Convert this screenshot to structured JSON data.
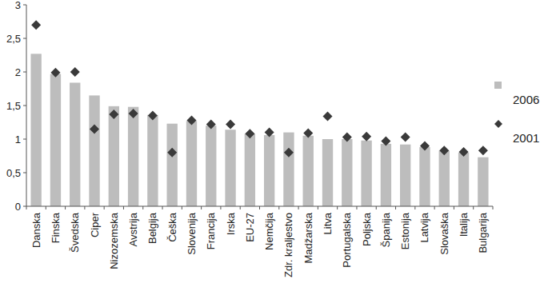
{
  "chart_data": {
    "type": "bar",
    "categories": [
      "Danska",
      "Finska",
      "Švedska",
      "Ciper",
      "Nizozemska",
      "Avstrija",
      "Belgija",
      "Češka",
      "Slovenija",
      "Francija",
      "Irska",
      "EU-27",
      "Nemčija",
      "Zdr. kraljestvo",
      "Madžarska",
      "Litva",
      "Portugalska",
      "Poljska",
      "Španija",
      "Estonija",
      "Latvija",
      "Slovaška",
      "Italija",
      "Bulgarija"
    ],
    "series": [
      {
        "name": "2006",
        "type": "bar",
        "color": "#bdbdbd",
        "values": [
          2.27,
          1.97,
          1.84,
          1.65,
          1.49,
          1.48,
          1.36,
          1.23,
          1.27,
          1.2,
          1.14,
          1.08,
          1.06,
          1.1,
          1.05,
          1.0,
          1.0,
          0.98,
          0.93,
          0.92,
          0.88,
          0.83,
          0.8,
          0.73
        ]
      },
      {
        "name": "2001",
        "type": "scatter",
        "marker": "diamond",
        "color": "#3a3a3a",
        "values": [
          2.7,
          1.99,
          2.0,
          1.15,
          1.37,
          1.38,
          1.35,
          0.8,
          1.28,
          1.22,
          1.22,
          1.08,
          1.1,
          0.8,
          1.09,
          1.34,
          1.03,
          1.04,
          0.97,
          1.03,
          0.9,
          0.83,
          0.81,
          0.83
        ]
      }
    ],
    "ylim": [
      0,
      3
    ],
    "yticks": [
      0,
      {
        "value": 0.5,
        "label": "0,5"
      },
      1,
      {
        "value": 1.5,
        "label": "1,5"
      },
      2,
      {
        "value": 2.5,
        "label": "2,5"
      },
      3
    ],
    "grid": false,
    "legend": "right"
  }
}
